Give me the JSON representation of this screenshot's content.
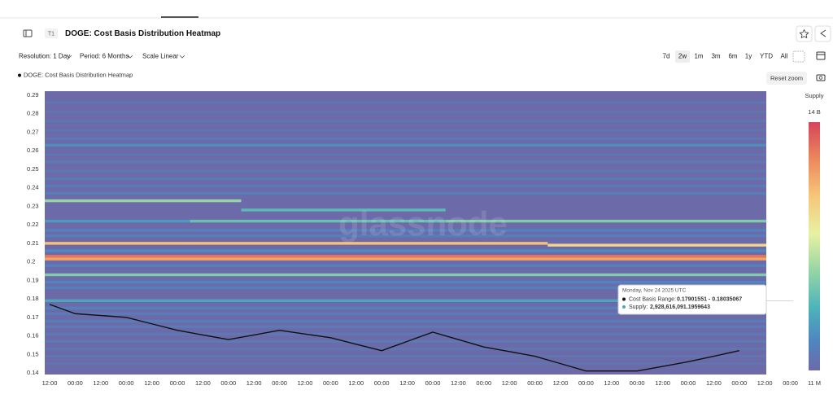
{
  "toolbar": {
    "badge": "T1",
    "title": "DOGE: Cost Basis Distribution Heatmap",
    "resolution": "Resolution: 1 Day",
    "period": "Period: 6 Months",
    "scale": "Scale Linear",
    "ranges": [
      "7d",
      "2w",
      "1m",
      "3m",
      "6m",
      "1y",
      "YTD",
      "All"
    ],
    "active_range": 1,
    "reset_zoom": "Reset zoom"
  },
  "watermark": "glassnode",
  "tooltip": {
    "date": "Monday, Nov 24 2025 UTC",
    "range_label": "Cost Basis Range:",
    "range_value": "0.17901551 - 0.18035067",
    "supply_label": "Supply:",
    "supply_value": "2,928,616,091.1959643"
  },
  "chart_data": {
    "type": "heatmap",
    "categories": [
      "12:00",
      "00:00",
      "12:00",
      "00:00",
      "12:00",
      "00:00",
      "12:00",
      "00:00",
      "12:00",
      "00:00",
      "12:00",
      "00:00",
      "12:00",
      "00:00",
      "12:00",
      "00:00",
      "12:00",
      "00:00",
      "12:00",
      "00:00",
      "12:00",
      "00:00",
      "12:00",
      "00:00",
      "12:00",
      "00:00",
      "12:00",
      "00:00",
      "12:00",
      "00:00"
    ],
    "series": [
      {
        "name": "DOGE: Cost Basis Distribution Heatmap",
        "color": "#111111",
        "values": [
          0.177,
          0.172,
          0.171,
          0.17,
          0.1665,
          0.163,
          0.1605,
          0.158,
          0.1605,
          0.163,
          0.161,
          0.159,
          0.1555,
          0.152,
          0.157,
          0.162,
          0.158,
          0.154,
          0.1515,
          0.149,
          0.145,
          0.141,
          0.141,
          0.141,
          0.1435,
          0.146,
          0.149,
          0.152,
          null,
          null
        ]
      }
    ],
    "ylim": [
      0.14,
      0.29
    ],
    "yticks": [
      0.14,
      0.15,
      0.16,
      0.17,
      0.18,
      0.19,
      0.2,
      0.21,
      0.22,
      0.23,
      0.24,
      0.25,
      0.26,
      0.27,
      0.28,
      0.29
    ],
    "bin_size": 0.0015,
    "colorbar_title": "Supply",
    "zlim": [
      11000000,
      14000000000
    ],
    "zticks": [
      {
        "value": 14000000000,
        "label": "14 B"
      },
      {
        "value": 11000000,
        "label": "11 M"
      }
    ],
    "colorscale": [
      [
        0,
        "#6c6aa8"
      ],
      [
        0.12,
        "#4f86c0"
      ],
      [
        0.25,
        "#4cb3ba"
      ],
      [
        0.4,
        "#95d5a4"
      ],
      [
        0.55,
        "#e8f1a2"
      ],
      [
        0.7,
        "#f6c77a"
      ],
      [
        0.85,
        "#ec885d"
      ],
      [
        1,
        "#d6445a"
      ]
    ],
    "bands": [
      {
        "price": 0.286,
        "start": 0,
        "end": 28,
        "supply": 700000000
      },
      {
        "price": 0.281,
        "start": 0,
        "end": 28,
        "supply": 500000000
      },
      {
        "price": 0.276,
        "start": 0,
        "end": 28,
        "supply": 800000000
      },
      {
        "price": 0.271,
        "start": 0,
        "end": 28,
        "supply": 600000000
      },
      {
        "price": 0.2665,
        "start": 0,
        "end": 28,
        "supply": 900000000
      },
      {
        "price": 0.263,
        "start": 0,
        "end": 28,
        "supply": 2000000000
      },
      {
        "price": 0.258,
        "start": 0,
        "end": 28,
        "supply": 700000000
      },
      {
        "price": 0.254,
        "start": 0,
        "end": 28,
        "supply": 900000000
      },
      {
        "price": 0.249,
        "start": 0,
        "end": 28,
        "supply": 800000000
      },
      {
        "price": 0.245,
        "start": 0,
        "end": 28,
        "supply": 1000000000
      },
      {
        "price": 0.241,
        "start": 0,
        "end": 28,
        "supply": 1100000000
      },
      {
        "price": 0.237,
        "start": 0,
        "end": 28,
        "supply": 1200000000
      },
      {
        "price": 0.233,
        "start": 0,
        "end": 7,
        "supply": 5600000000
      },
      {
        "price": 0.228,
        "start": 8,
        "end": 15,
        "supply": 4000000000
      },
      {
        "price": 0.222,
        "start": 0,
        "end": 5,
        "supply": 2500000000
      },
      {
        "price": 0.222,
        "start": 6,
        "end": 15,
        "supply": 4300000000
      },
      {
        "price": 0.222,
        "start": 16,
        "end": 28,
        "supply": 5000000000
      },
      {
        "price": 0.217,
        "start": 0,
        "end": 28,
        "supply": 1500000000
      },
      {
        "price": 0.214,
        "start": 0,
        "end": 28,
        "supply": 1200000000
      },
      {
        "price": 0.21,
        "start": 0,
        "end": 19,
        "supply": 10000000000
      },
      {
        "price": 0.209,
        "start": 20,
        "end": 28,
        "supply": 9000000000
      },
      {
        "price": 0.206,
        "start": 0,
        "end": 28,
        "supply": 1800000000
      },
      {
        "price": 0.203,
        "start": 0,
        "end": 28,
        "supply": 12500000000
      },
      {
        "price": 0.2015,
        "start": 0,
        "end": 28,
        "supply": 11000000000
      },
      {
        "price": 0.198,
        "start": 0,
        "end": 28,
        "supply": 1400000000
      },
      {
        "price": 0.193,
        "start": 0,
        "end": 28,
        "supply": 5000000000
      },
      {
        "price": 0.189,
        "start": 0,
        "end": 28,
        "supply": 1600000000
      },
      {
        "price": 0.186,
        "start": 0,
        "end": 28,
        "supply": 1300000000
      },
      {
        "price": 0.179,
        "start": 0,
        "end": 28,
        "supply": 2930000000
      },
      {
        "price": 0.175,
        "start": 0,
        "end": 28,
        "supply": 1300000000
      },
      {
        "price": 0.172,
        "start": 0,
        "end": 28,
        "supply": 1100000000
      },
      {
        "price": 0.168,
        "start": 0,
        "end": 28,
        "supply": 1200000000
      },
      {
        "price": 0.165,
        "start": 0,
        "end": 28,
        "supply": 1000000000
      },
      {
        "price": 0.161,
        "start": 0,
        "end": 28,
        "supply": 900000000
      },
      {
        "price": 0.157,
        "start": 0,
        "end": 28,
        "supply": 1000000000
      },
      {
        "price": 0.153,
        "start": 0,
        "end": 28,
        "supply": 800000000
      },
      {
        "price": 0.149,
        "start": 0,
        "end": 28,
        "supply": 700000000
      },
      {
        "price": 0.145,
        "start": 0,
        "end": 28,
        "supply": 600000000
      }
    ]
  }
}
